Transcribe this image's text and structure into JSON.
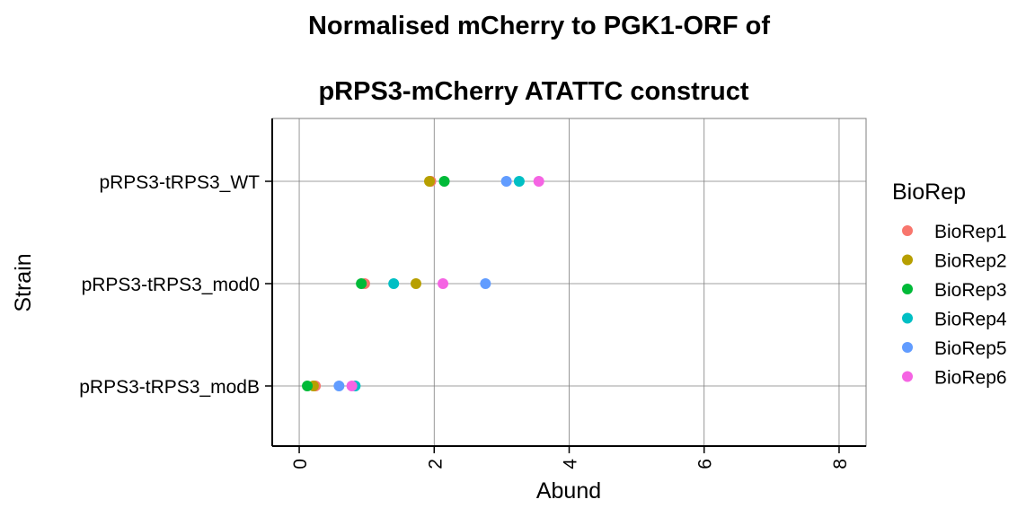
{
  "chart_data": {
    "type": "scatter",
    "title": [
      "Normalised mCherry to PGK1-ORF of",
      "pRPS3-mCherry ATATTC construct"
    ],
    "xlabel": "Abund",
    "ylabel": "Strain",
    "xlim": [
      -0.4,
      8.4
    ],
    "x_ticks": [
      "0",
      "2",
      "4",
      "6",
      "8"
    ],
    "categories": [
      "pRPS3-tRPS3_WT",
      "pRPS3-tRPS3_mod0",
      "pRPS3-tRPS3_modB"
    ],
    "grid": true,
    "legend_position": "right",
    "legend_title": "BioRep",
    "series": [
      {
        "name": "BioRep1",
        "color": "#F8766D",
        "values": [
          1.95,
          0.97,
          0.24
        ]
      },
      {
        "name": "BioRep2",
        "color": "#B79F00",
        "values": [
          1.93,
          1.73,
          0.21
        ]
      },
      {
        "name": "BioRep3",
        "color": "#00BA38",
        "values": [
          2.15,
          0.92,
          0.12
        ]
      },
      {
        "name": "BioRep4",
        "color": "#00BFC4",
        "values": [
          3.26,
          1.4,
          0.83
        ]
      },
      {
        "name": "BioRep5",
        "color": "#619CFF",
        "values": [
          3.07,
          2.76,
          0.59
        ]
      },
      {
        "name": "BioRep6",
        "color": "#F564E3",
        "values": [
          3.55,
          2.13,
          0.78
        ]
      }
    ]
  }
}
